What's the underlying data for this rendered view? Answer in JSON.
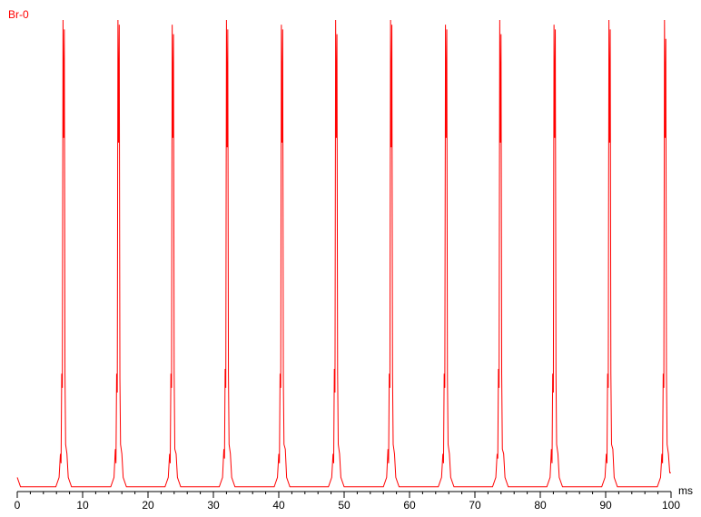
{
  "chart_data": {
    "type": "line",
    "x_label": "ms",
    "x": [
      0,
      0.5,
      5.9,
      6.4,
      6.6,
      6.7,
      6.8,
      6.9,
      7.0,
      7.1,
      7.2,
      7.3,
      7.4,
      7.6,
      7.8,
      8.3,
      14.3,
      14.8,
      15.0,
      15.1,
      15.2,
      15.3,
      15.4,
      15.5,
      15.6,
      15.7,
      15.8,
      16.0,
      16.2,
      16.7,
      22.6,
      23.1,
      23.3,
      23.4,
      23.5,
      23.6,
      23.7,
      23.8,
      23.9,
      24.0,
      24.1,
      24.3,
      24.5,
      25.0,
      30.9,
      31.4,
      31.6,
      31.7,
      31.8,
      31.9,
      32.0,
      32.1,
      32.2,
      32.3,
      32.4,
      32.6,
      32.8,
      33.3,
      39.3,
      39.8,
      40.0,
      40.1,
      40.2,
      40.3,
      40.4,
      40.5,
      40.6,
      40.7,
      40.8,
      41.0,
      41.2,
      41.7,
      47.6,
      48.1,
      48.3,
      48.4,
      48.5,
      48.6,
      48.7,
      48.8,
      48.9,
      49.0,
      49.1,
      49.3,
      49.5,
      50.0,
      56.0,
      56.5,
      56.7,
      56.8,
      56.9,
      57.0,
      57.1,
      57.2,
      57.3,
      57.4,
      57.5,
      57.7,
      57.9,
      58.4,
      64.4,
      64.9,
      65.1,
      65.2,
      65.3,
      65.4,
      65.5,
      65.6,
      65.7,
      65.8,
      65.9,
      66.1,
      66.3,
      66.8,
      72.7,
      73.2,
      73.4,
      73.5,
      73.6,
      73.7,
      73.8,
      73.9,
      74.0,
      74.1,
      74.2,
      74.4,
      74.6,
      75.1,
      81.0,
      81.5,
      81.7,
      81.8,
      81.9,
      82.0,
      82.1,
      82.2,
      82.3,
      82.4,
      82.5,
      82.7,
      82.9,
      83.4,
      89.4,
      89.9,
      90.1,
      90.2,
      90.3,
      90.4,
      90.5,
      90.6,
      90.7,
      90.8,
      90.9,
      91.1,
      91.3,
      91.8,
      97.9,
      98.4,
      98.6,
      98.7,
      98.8,
      98.9,
      99.0,
      99.1,
      99.2,
      99.3,
      99.4,
      99.6,
      99.8,
      100
    ],
    "series": [
      {
        "name": "Br-0",
        "color": "#ff0000",
        "values": [
          3,
          1,
          1,
          3,
          8,
          6,
          25,
          22,
          100,
          75,
          98,
          25,
          10,
          8,
          3,
          1,
          1,
          3,
          9,
          6,
          25,
          21,
          100,
          74,
          99,
          24,
          10,
          8,
          3,
          1,
          1,
          3,
          8,
          6,
          25,
          22,
          99,
          75,
          97,
          25,
          9,
          8,
          3,
          1,
          1,
          3,
          9,
          7,
          26,
          22,
          100,
          73,
          98,
          25,
          10,
          8,
          3,
          1,
          1,
          3,
          8,
          6,
          25,
          22,
          99,
          74,
          98,
          24,
          10,
          9,
          3,
          1,
          1,
          3,
          8,
          6,
          26,
          21,
          100,
          75,
          97,
          25,
          10,
          8,
          3,
          1,
          1,
          3,
          9,
          6,
          25,
          22,
          100,
          73,
          99,
          25,
          10,
          8,
          3,
          1,
          1,
          3,
          8,
          6,
          25,
          22,
          99,
          75,
          98,
          24,
          10,
          8,
          3,
          1,
          1,
          3,
          8,
          7,
          26,
          22,
          100,
          74,
          97,
          25,
          9,
          8,
          3,
          1,
          1,
          3,
          9,
          6,
          25,
          21,
          99,
          75,
          98,
          25,
          10,
          8,
          3,
          1,
          1,
          3,
          8,
          6,
          25,
          22,
          100,
          74,
          98,
          25,
          10,
          9,
          3,
          1,
          1,
          3,
          8,
          6,
          25,
          22,
          100,
          75,
          96,
          25,
          10,
          8,
          4,
          4
        ]
      }
    ],
    "xlim": [
      0,
      100
    ],
    "ylim": [
      0,
      100
    ],
    "xticks": [
      0,
      10,
      20,
      30,
      40,
      50,
      60,
      70,
      80,
      90,
      100
    ],
    "xminorticks": [
      2,
      4,
      6,
      8,
      12,
      14,
      16,
      18,
      22,
      24,
      26,
      28,
      32,
      34,
      36,
      38,
      42,
      44,
      46,
      48,
      52,
      54,
      56,
      58,
      62,
      64,
      66,
      68,
      72,
      74,
      76,
      78,
      82,
      84,
      86,
      88,
      92,
      94,
      96,
      98
    ]
  }
}
